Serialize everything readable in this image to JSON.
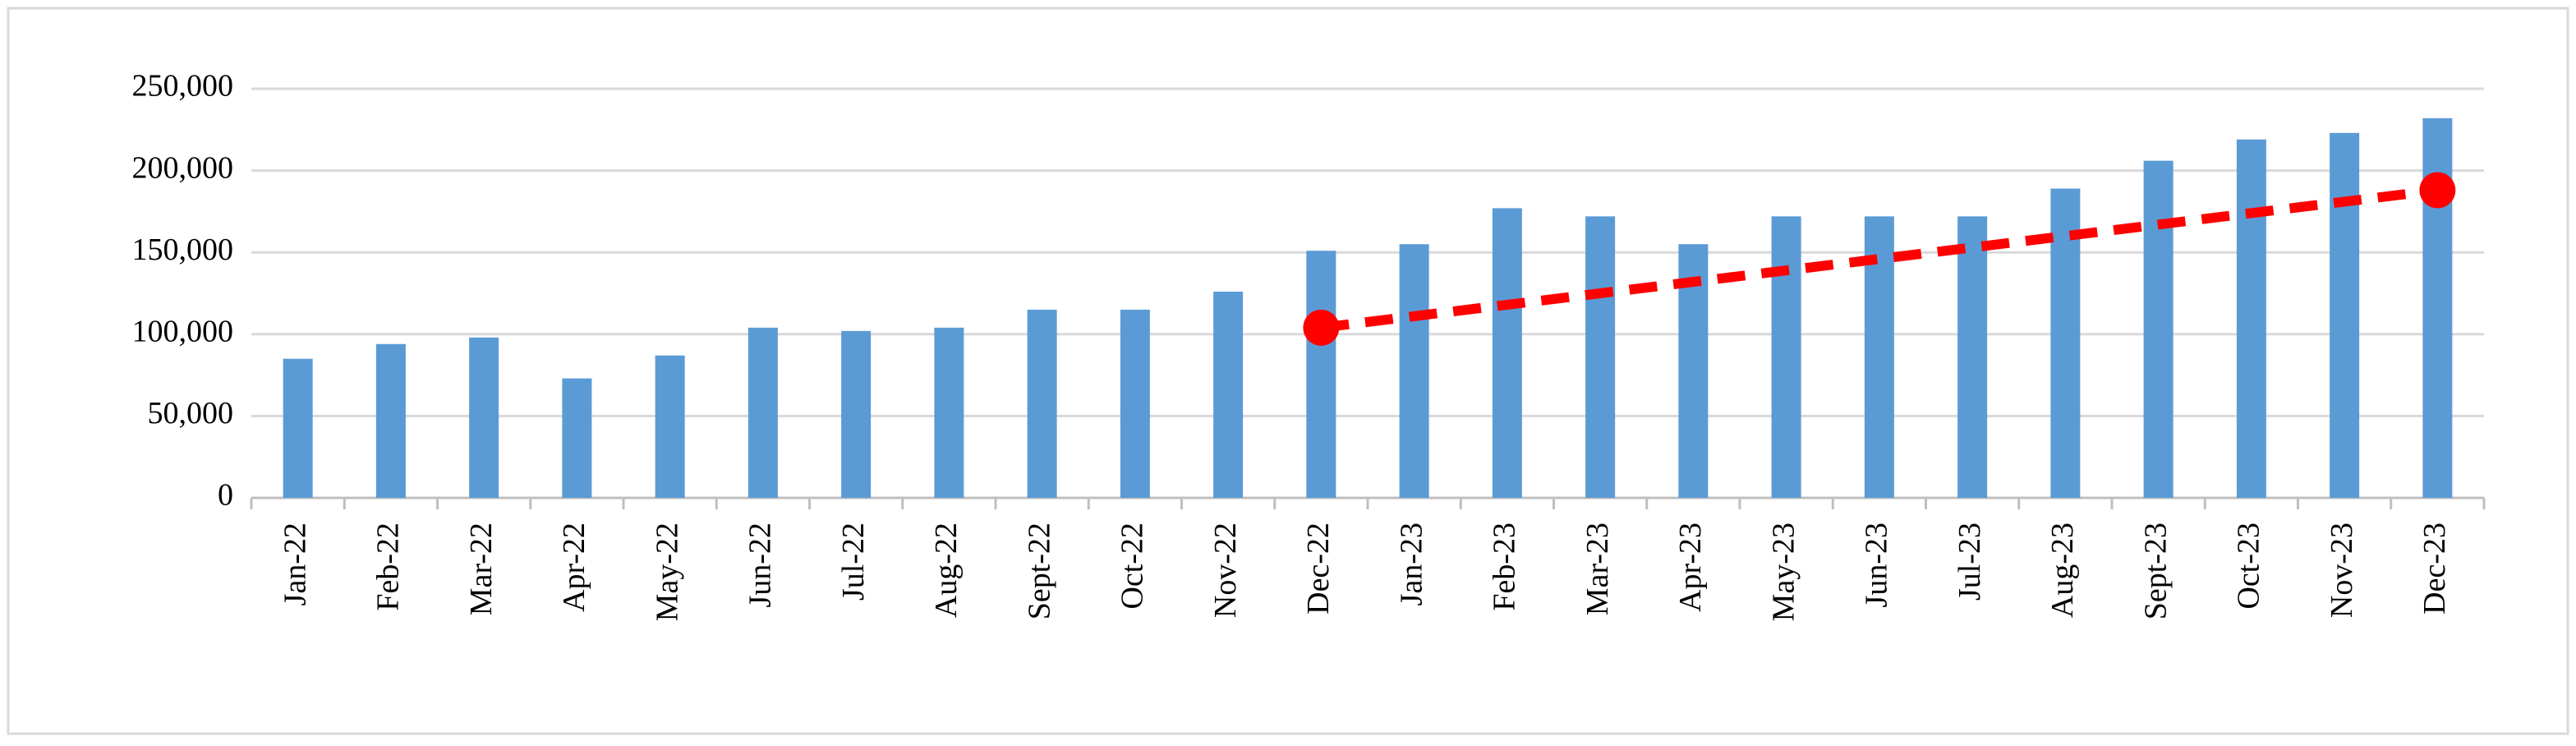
{
  "chart_data": {
    "type": "bar",
    "categories": [
      "Jan-22",
      "Feb-22",
      "Mar-22",
      "Apr-22",
      "May-22",
      "Jun-22",
      "Jul-22",
      "Aug-22",
      "Sept-22",
      "Oct-22",
      "Nov-22",
      "Dec-22",
      "Jan-23",
      "Feb-23",
      "Mar-23",
      "Apr-23",
      "May-23",
      "Jun-23",
      "Jul-23",
      "Aug-23",
      "Sept-23",
      "Oct-23",
      "Nov-23",
      "Dec-23"
    ],
    "values": [
      85000,
      94000,
      98000,
      73000,
      87000,
      104000,
      102000,
      104000,
      115000,
      115000,
      126000,
      151000,
      155000,
      177000,
      172000,
      155000,
      172000,
      172000,
      172000,
      189000,
      206000,
      219000,
      223000,
      232000
    ],
    "color": "#5b9bd5",
    "trend": {
      "type": "line",
      "categories": [
        "Dec-22",
        "Dec-23"
      ],
      "values": [
        104000,
        188000
      ],
      "color": "#ff0000"
    },
    "ylim": [
      0,
      250000
    ],
    "yticks": [
      0,
      {
        "value": 50000,
        "label": "50,000"
      },
      {
        "value": 100000,
        "label": "100,000"
      },
      {
        "value": 150000,
        "label": "150,000"
      },
      {
        "value": 200000,
        "label": "200,000"
      },
      {
        "value": 250000,
        "label": "250,000"
      }
    ],
    "grid": true
  }
}
